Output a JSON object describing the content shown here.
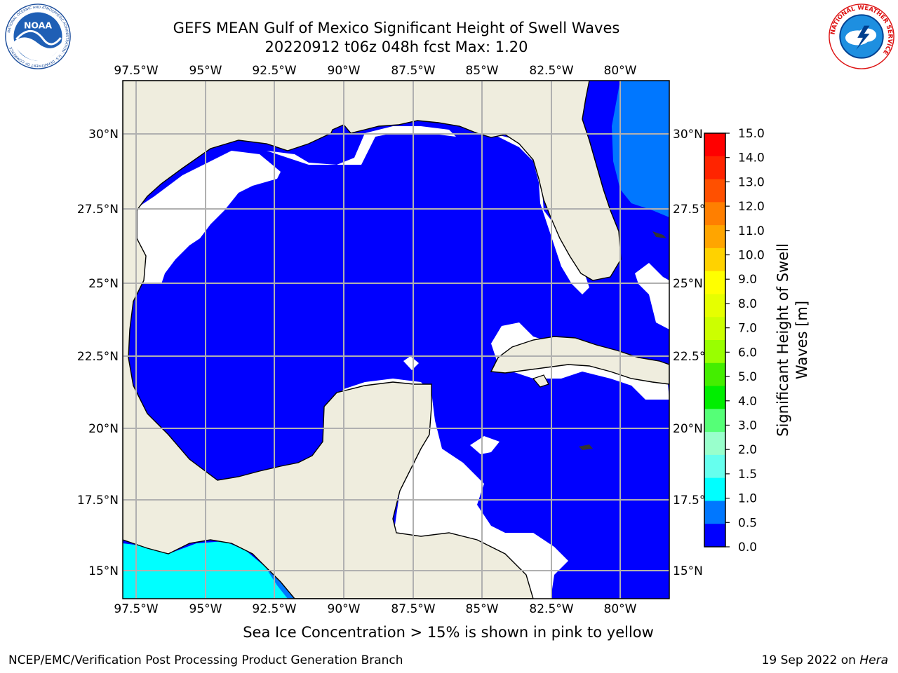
{
  "header": {
    "title_line1": "GEFS MEAN Gulf of Mexico Significant Height of Swell Waves",
    "title_line2": "20220912 t06z 048h fcst   Max: 1.20"
  },
  "logos": {
    "noaa": {
      "text": "NOAA",
      "ring_text": "NATIONAL OCEANIC AND ATMOSPHERIC ADMINISTRATION · U.S. DEPARTMENT OF COMMERCE"
    },
    "nws": {
      "ring_text": "NATIONAL WEATHER SERVICE"
    }
  },
  "map": {
    "lon_labels": [
      "97.5°W",
      "95°W",
      "92.5°W",
      "90°W",
      "87.5°W",
      "85°W",
      "82.5°W",
      "80°W"
    ],
    "lat_labels": [
      "30°N",
      "27.5°N",
      "25°N",
      "22.5°N",
      "20°N",
      "17.5°N",
      "15°N"
    ],
    "colors": {
      "land": "#efedde",
      "ocean": "#0000ff",
      "grid": "#b0b0b0",
      "coast": "#000000"
    }
  },
  "colorbar": {
    "label": "Significant Height of Swell Waves [m]",
    "label_line1": "Significant Height of Swell",
    "label_line2": "Waves [m]",
    "ticks": [
      "15.0",
      "14.0",
      "13.0",
      "12.0",
      "11.0",
      "10.0",
      "9.0",
      "8.0",
      "7.0",
      "6.0",
      "5.0",
      "4.0",
      "3.0",
      "2.0",
      "1.5",
      "1.0",
      "0.5",
      "0.0"
    ],
    "colors": [
      "#ff0000",
      "#ff2400",
      "#ff5000",
      "#ff7f00",
      "#ffa500",
      "#ffd200",
      "#ffff00",
      "#e6ff00",
      "#ccff00",
      "#99ff00",
      "#44ee00",
      "#00ee00",
      "#55ff77",
      "#99ffcc",
      "#66ffee",
      "#00ffff",
      "#0077ff",
      "#0000ff"
    ]
  },
  "footer": {
    "subtitle": "Sea Ice Concentration > 15% is shown in pink to yellow",
    "left": "NCEP/EMC/Verification Post Processing Product Generation Branch",
    "right_date": "19 Sep 2022 on ",
    "right_host": "Hera"
  }
}
